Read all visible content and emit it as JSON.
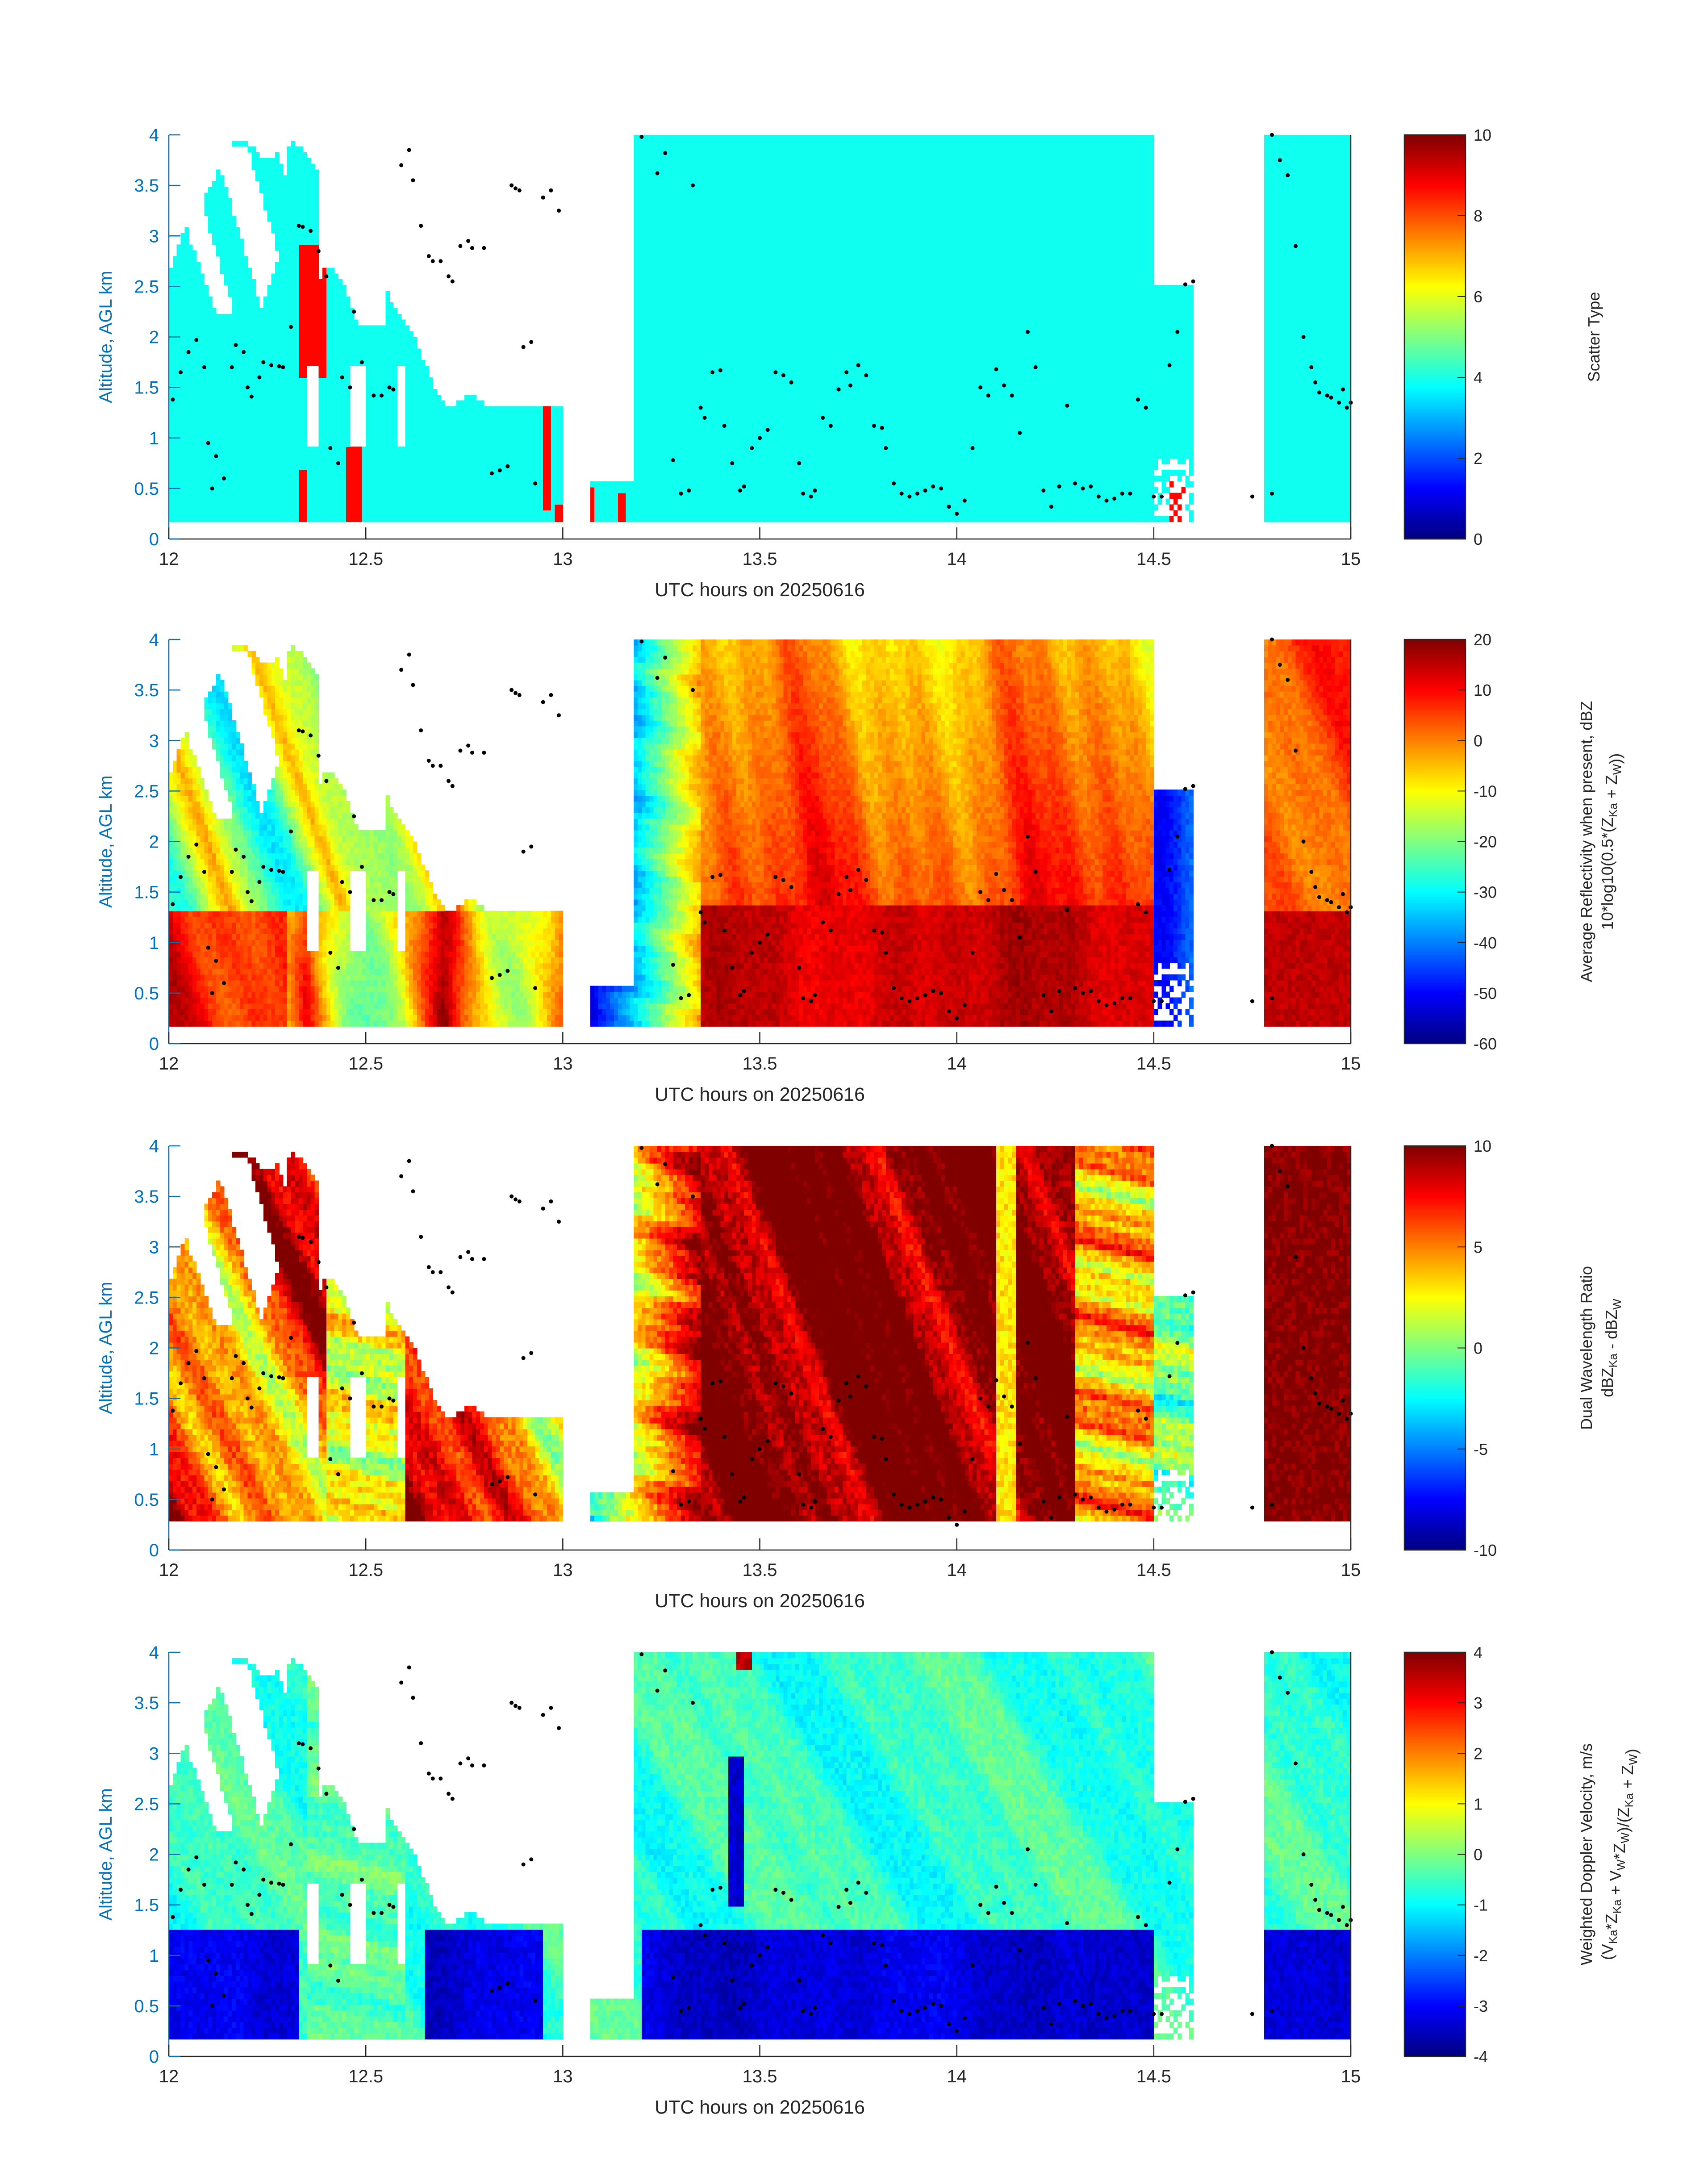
{
  "chart_data": [
    {
      "type": "heatmap",
      "xlabel": "UTC hours on 20250616",
      "ylabel": "Altitude, AGL km",
      "xlim": [
        12,
        15
      ],
      "ylim": [
        0,
        4
      ],
      "xticks": [
        "12",
        "12.5",
        "13",
        "13.5",
        "14",
        "14.5",
        "15"
      ],
      "yticks": [
        "0",
        "0.5",
        "1",
        "1.5",
        "2",
        "2.5",
        "3",
        "3.5",
        "4"
      ],
      "colorbar": {
        "label": "Scatter Type",
        "label2": "",
        "ticks": [
          "0",
          "2",
          "4",
          "6",
          "8",
          "10"
        ],
        "range": [
          0,
          10
        ]
      },
      "field": "scatter",
      "dominant_value": 4,
      "secondary_value": 9
    },
    {
      "type": "heatmap",
      "xlabel": "UTC hours on 20250616",
      "ylabel": "Altitude, AGL km",
      "xlim": [
        12,
        15
      ],
      "ylim": [
        0,
        4
      ],
      "xticks": [
        "12",
        "12.5",
        "13",
        "13.5",
        "14",
        "14.5",
        "15"
      ],
      "yticks": [
        "0",
        "0.5",
        "1",
        "1.5",
        "2",
        "2.5",
        "3",
        "3.5",
        "4"
      ],
      "colorbar": {
        "label": "Average Reflectivity when present, dBZ",
        "label2": "10*log10(0.5*(Z_Ka + Z_W))",
        "ticks": [
          "-60",
          "-50",
          "-40",
          "-30",
          "-20",
          "-10",
          "0",
          "10",
          "20"
        ],
        "range": [
          -60,
          20
        ]
      },
      "field": "reflectivity"
    },
    {
      "type": "heatmap",
      "xlabel": "UTC hours on 20250616",
      "ylabel": "Altitude, AGL km",
      "xlim": [
        12,
        15
      ],
      "ylim": [
        0,
        4
      ],
      "xticks": [
        "12",
        "12.5",
        "13",
        "13.5",
        "14",
        "14.5",
        "15"
      ],
      "yticks": [
        "0",
        "0.5",
        "1",
        "1.5",
        "2",
        "2.5",
        "3",
        "3.5",
        "4"
      ],
      "colorbar": {
        "label": "Dual Wavelength Ratio",
        "label2": "dBZ_Ka - dBZ_W",
        "ticks": [
          "-10",
          "-5",
          "0",
          "5",
          "10"
        ],
        "range": [
          -10,
          10
        ]
      },
      "field": "dwr"
    },
    {
      "type": "heatmap",
      "xlabel": "UTC hours on 20250616",
      "ylabel": "Altitude, AGL km",
      "xlim": [
        12,
        15
      ],
      "ylim": [
        0,
        4
      ],
      "xticks": [
        "12",
        "12.5",
        "13",
        "13.5",
        "14",
        "14.5",
        "15"
      ],
      "yticks": [
        "0",
        "0.5",
        "1",
        "1.5",
        "2",
        "2.5",
        "3",
        "3.5",
        "4"
      ],
      "colorbar": {
        "label": "Weighted Doppler Velocity, m/s",
        "label2": "(V_Ka*Z_Ka + V_W*Z_W)/(Z_Ka + Z_W)",
        "ticks": [
          "-4",
          "-3",
          "-2",
          "-1",
          "0",
          "1",
          "2",
          "3",
          "4"
        ],
        "range": [
          -4,
          4
        ]
      },
      "field": "velocity"
    }
  ],
  "cloud_top_markers": {
    "description_free": true,
    "points": [
      [
        12.01,
        1.38
      ],
      [
        12.03,
        1.65
      ],
      [
        12.05,
        1.85
      ],
      [
        12.07,
        1.97
      ],
      [
        12.09,
        1.7
      ],
      [
        12.1,
        0.95
      ],
      [
        12.11,
        0.5
      ],
      [
        12.12,
        0.82
      ],
      [
        12.14,
        0.6
      ],
      [
        12.16,
        1.7
      ],
      [
        12.17,
        1.92
      ],
      [
        12.19,
        1.85
      ],
      [
        12.2,
        1.5
      ],
      [
        12.21,
        1.41
      ],
      [
        12.23,
        1.6
      ],
      [
        12.24,
        1.75
      ],
      [
        12.26,
        1.72
      ],
      [
        12.28,
        1.71
      ],
      [
        12.29,
        1.7
      ],
      [
        12.31,
        2.1
      ],
      [
        12.33,
        3.1
      ],
      [
        12.34,
        3.09
      ],
      [
        12.36,
        3.05
      ],
      [
        12.38,
        2.85
      ],
      [
        12.4,
        2.6
      ],
      [
        12.41,
        0.9
      ],
      [
        12.43,
        0.75
      ],
      [
        12.44,
        1.6
      ],
      [
        12.46,
        1.5
      ],
      [
        12.47,
        2.25
      ],
      [
        12.49,
        1.75
      ],
      [
        12.52,
        1.42
      ],
      [
        12.54,
        1.42
      ],
      [
        12.56,
        1.5
      ],
      [
        12.57,
        1.48
      ],
      [
        12.59,
        3.7
      ],
      [
        12.61,
        3.85
      ],
      [
        12.62,
        3.55
      ],
      [
        12.64,
        3.1
      ],
      [
        12.66,
        2.8
      ],
      [
        12.67,
        2.75
      ],
      [
        12.69,
        2.75
      ],
      [
        12.71,
        2.6
      ],
      [
        12.72,
        2.55
      ],
      [
        12.74,
        2.9
      ],
      [
        12.76,
        2.95
      ],
      [
        12.77,
        2.88
      ],
      [
        12.8,
        2.88
      ],
      [
        12.82,
        0.65
      ],
      [
        12.84,
        0.68
      ],
      [
        12.86,
        0.72
      ],
      [
        12.87,
        3.5
      ],
      [
        12.88,
        3.47
      ],
      [
        12.89,
        3.45
      ],
      [
        12.9,
        1.9
      ],
      [
        12.92,
        1.95
      ],
      [
        12.93,
        0.55
      ],
      [
        12.95,
        3.38
      ],
      [
        12.97,
        3.45
      ],
      [
        12.99,
        3.25
      ],
      [
        13.2,
        3.98
      ],
      [
        13.24,
        3.62
      ],
      [
        13.26,
        3.82
      ],
      [
        13.28,
        0.78
      ],
      [
        13.3,
        0.45
      ],
      [
        13.32,
        0.48
      ],
      [
        13.33,
        3.5
      ],
      [
        13.35,
        1.3
      ],
      [
        13.36,
        1.2
      ],
      [
        13.38,
        1.65
      ],
      [
        13.4,
        1.67
      ],
      [
        13.41,
        1.12
      ],
      [
        13.43,
        0.75
      ],
      [
        13.45,
        0.48
      ],
      [
        13.46,
        0.52
      ],
      [
        13.48,
        0.9
      ],
      [
        13.5,
        1.0
      ],
      [
        13.52,
        1.08
      ],
      [
        13.54,
        1.65
      ],
      [
        13.56,
        1.62
      ],
      [
        13.58,
        1.55
      ],
      [
        13.6,
        0.75
      ],
      [
        13.61,
        0.45
      ],
      [
        13.63,
        0.42
      ],
      [
        13.64,
        0.48
      ],
      [
        13.66,
        1.2
      ],
      [
        13.68,
        1.12
      ],
      [
        13.7,
        1.48
      ],
      [
        13.72,
        1.65
      ],
      [
        13.73,
        1.52
      ],
      [
        13.75,
        1.72
      ],
      [
        13.77,
        1.62
      ],
      [
        13.79,
        1.12
      ],
      [
        13.81,
        1.1
      ],
      [
        13.82,
        0.9
      ],
      [
        13.84,
        0.55
      ],
      [
        13.86,
        0.45
      ],
      [
        13.88,
        0.42
      ],
      [
        13.9,
        0.45
      ],
      [
        13.92,
        0.48
      ],
      [
        13.94,
        0.52
      ],
      [
        13.96,
        0.5
      ],
      [
        13.98,
        0.32
      ],
      [
        14.0,
        0.25
      ],
      [
        14.02,
        0.38
      ],
      [
        14.04,
        0.9
      ],
      [
        14.06,
        1.5
      ],
      [
        14.08,
        1.42
      ],
      [
        14.1,
        1.68
      ],
      [
        14.12,
        1.52
      ],
      [
        14.14,
        1.42
      ],
      [
        14.16,
        1.05
      ],
      [
        14.18,
        2.05
      ],
      [
        14.2,
        1.7
      ],
      [
        14.22,
        0.48
      ],
      [
        14.24,
        0.32
      ],
      [
        14.26,
        0.52
      ],
      [
        14.28,
        1.32
      ],
      [
        14.3,
        0.55
      ],
      [
        14.32,
        0.5
      ],
      [
        14.34,
        0.52
      ],
      [
        14.36,
        0.42
      ],
      [
        14.38,
        0.38
      ],
      [
        14.4,
        0.4
      ],
      [
        14.42,
        0.45
      ],
      [
        14.44,
        0.45
      ],
      [
        14.46,
        1.38
      ],
      [
        14.48,
        1.3
      ],
      [
        14.5,
        0.42
      ],
      [
        14.52,
        0.42
      ],
      [
        14.54,
        1.72
      ],
      [
        14.56,
        2.05
      ],
      [
        14.58,
        2.52
      ],
      [
        14.6,
        2.55
      ],
      [
        14.8,
        4.0
      ],
      [
        14.82,
        3.75
      ],
      [
        14.84,
        3.6
      ],
      [
        14.86,
        2.9
      ],
      [
        14.88,
        2.0
      ],
      [
        14.9,
        1.7
      ],
      [
        14.91,
        1.55
      ],
      [
        14.92,
        1.45
      ],
      [
        14.94,
        1.42
      ],
      [
        14.95,
        1.4
      ],
      [
        14.97,
        1.35
      ],
      [
        14.98,
        1.48
      ],
      [
        14.99,
        1.3
      ],
      [
        15.0,
        1.35
      ],
      [
        14.8,
        0.45
      ],
      [
        14.75,
        0.42
      ]
    ]
  }
}
